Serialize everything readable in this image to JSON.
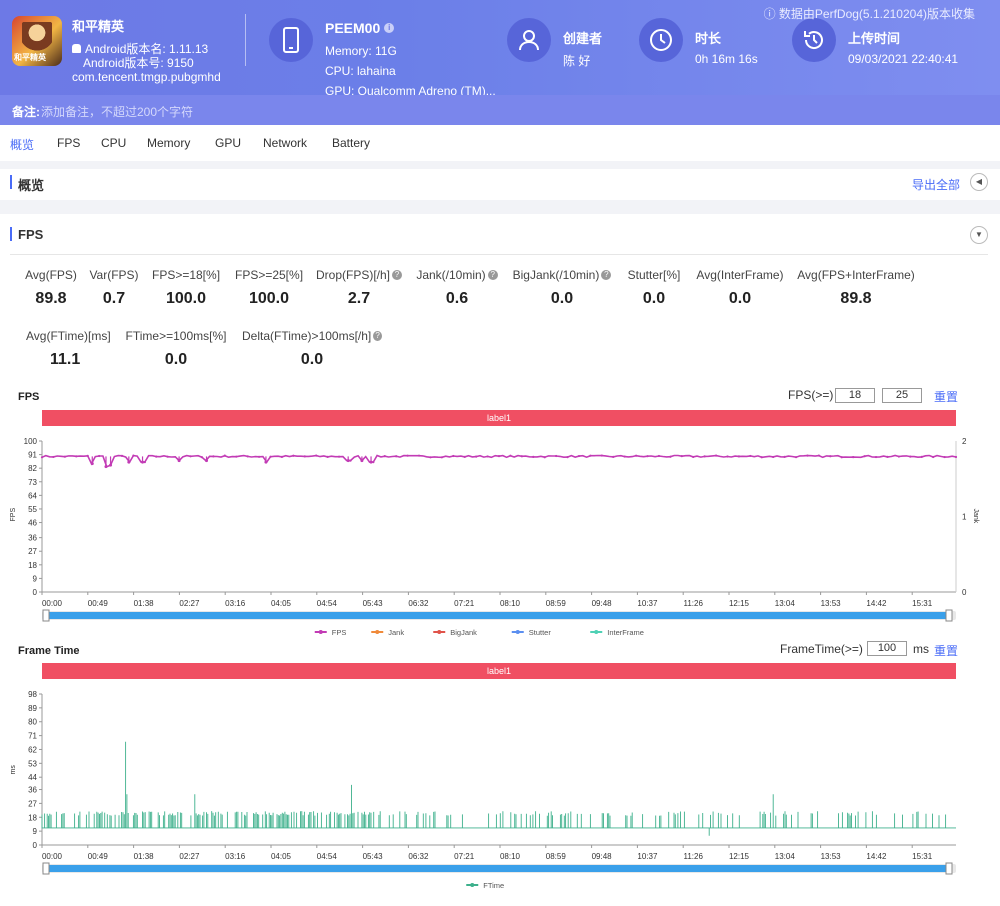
{
  "header": {
    "game_name": "和平精英",
    "game_icon_text": "和平精英",
    "android_version_name": "Android版本名: 1.11.13",
    "android_version_code": "Android版本号: 9150",
    "package": "com.tencent.tmgp.pubgmhd",
    "device_name": "PEEM00",
    "memory": "Memory: 11G",
    "cpu": "CPU: lahaina",
    "gpu": "GPU: Qualcomm Adreno (TM)...",
    "creator_label": "创建者",
    "creator_value": "陈 好",
    "duration_label": "时长",
    "duration_value": "0h 16m 16s",
    "upload_label": "上传时间",
    "upload_value": "09/03/2021 22:40:41",
    "version_note": "ⓘ 数据由PerfDog(5.1.210204)版本收集"
  },
  "note": {
    "label": "备注:",
    "placeholder": "添加备注，不超过200个字符"
  },
  "tabs": [
    "概览",
    "FPS",
    "CPU",
    "Memory",
    "GPU",
    "Network",
    "Battery"
  ],
  "overview": {
    "title": "概览",
    "export_label": "导出全部"
  },
  "fps_section": {
    "title": "FPS",
    "stats_row1": [
      {
        "label": "Avg(FPS)",
        "value": "89.8",
        "help": false
      },
      {
        "label": "Var(FPS)",
        "value": "0.7",
        "help": false
      },
      {
        "label": "FPS>=18[%]",
        "value": "100.0",
        "help": false
      },
      {
        "label": "FPS>=25[%]",
        "value": "100.0",
        "help": false
      },
      {
        "label": "Drop(FPS)[/h]",
        "value": "2.7",
        "help": true
      },
      {
        "label": "Jank(/10min)",
        "value": "0.6",
        "help": true
      },
      {
        "label": "BigJank(/10min)",
        "value": "0.0",
        "help": true
      },
      {
        "label": "Stutter[%]",
        "value": "0.0",
        "help": false
      },
      {
        "label": "Avg(InterFrame)",
        "value": "0.0",
        "help": false
      },
      {
        "label": "Avg(FPS+InterFrame)",
        "value": "89.8",
        "help": false
      }
    ],
    "stats_row2": [
      {
        "label": "Avg(FTime)[ms]",
        "value": "11.1",
        "help": false
      },
      {
        "label": "FTime>=100ms[%]",
        "value": "0.0",
        "help": false
      },
      {
        "label": "Delta(FTime)>100ms[/h]",
        "value": "0.0",
        "help": true
      }
    ]
  },
  "fps_chart_controls": {
    "title": "FPS",
    "threshold_label": "FPS(>=)",
    "threshold1": "18",
    "threshold2": "25",
    "reset_label": "重置",
    "banner": "label1",
    "y_axis_title": "FPS",
    "y2_axis_title": "Jank",
    "legend": [
      "FPS",
      "Jank",
      "BigJank",
      "Stutter",
      "InterFrame"
    ]
  },
  "ftime_chart_controls": {
    "title": "Frame Time",
    "threshold_label": "FrameTime(>=)",
    "threshold": "100",
    "unit": "ms",
    "reset_label": "重置",
    "banner": "label1",
    "y_axis_title": "ms",
    "legend": [
      "FTime"
    ]
  },
  "chart_data": [
    {
      "type": "line",
      "title": "FPS",
      "x_ticks": [
        "00:00",
        "00:49",
        "01:38",
        "02:27",
        "03:16",
        "04:05",
        "04:54",
        "05:43",
        "06:32",
        "07:21",
        "08:10",
        "08:59",
        "09:48",
        "10:37",
        "11:26",
        "12:15",
        "13:04",
        "13:53",
        "14:42",
        "15:31"
      ],
      "y_ticks": [
        0,
        9,
        18,
        27,
        36,
        46,
        55,
        64,
        73,
        82,
        91,
        100
      ],
      "y2_ticks": [
        0,
        1,
        2
      ],
      "ylim": [
        0,
        100
      ],
      "y2lim": [
        0,
        2
      ],
      "grid": false,
      "legend_position": "bottom",
      "series": [
        {
          "name": "FPS",
          "color": "#c23bb5",
          "baseline": 89.8,
          "dips": [
            {
              "t": 0.055,
              "v": 85
            },
            {
              "t": 0.07,
              "v": 83
            },
            {
              "t": 0.075,
              "v": 84
            },
            {
              "t": 0.095,
              "v": 86
            },
            {
              "t": 0.11,
              "v": 86
            },
            {
              "t": 0.15,
              "v": 87
            },
            {
              "t": 0.18,
              "v": 87
            },
            {
              "t": 0.245,
              "v": 86
            },
            {
              "t": 0.335,
              "v": 87
            },
            {
              "t": 0.35,
              "v": 87
            },
            {
              "t": 0.36,
              "v": 86
            }
          ]
        },
        {
          "name": "Jank",
          "color": "#f08a3a",
          "values": []
        },
        {
          "name": "BigJank",
          "color": "#e0534a",
          "values": []
        },
        {
          "name": "Stutter",
          "color": "#5b8ff0",
          "values": []
        },
        {
          "name": "InterFrame",
          "color": "#4fd1b5",
          "values": []
        }
      ]
    },
    {
      "type": "line",
      "title": "Frame Time",
      "x_ticks": [
        "00:00",
        "00:49",
        "01:38",
        "02:27",
        "03:16",
        "04:05",
        "04:54",
        "05:43",
        "06:32",
        "07:21",
        "08:10",
        "08:59",
        "09:48",
        "10:37",
        "11:26",
        "12:15",
        "13:04",
        "13:53",
        "14:42",
        "15:31"
      ],
      "y_ticks": [
        0,
        9,
        18,
        27,
        36,
        44,
        53,
        62,
        71,
        80,
        89,
        98
      ],
      "ylim": [
        0,
        98
      ],
      "grid": false,
      "legend_position": "bottom",
      "series": [
        {
          "name": "FTime",
          "color": "#3db08c",
          "baseline": 11.1,
          "spikes": [
            {
              "t": 0.092,
              "v": 67
            },
            {
              "t": 0.093,
              "v": 33
            },
            {
              "t": 0.167,
              "v": 33
            },
            {
              "t": 0.338,
              "v": 39
            },
            {
              "t": 0.8,
              "v": 33
            },
            {
              "t": 0.73,
              "v": 6
            }
          ]
        }
      ]
    }
  ]
}
